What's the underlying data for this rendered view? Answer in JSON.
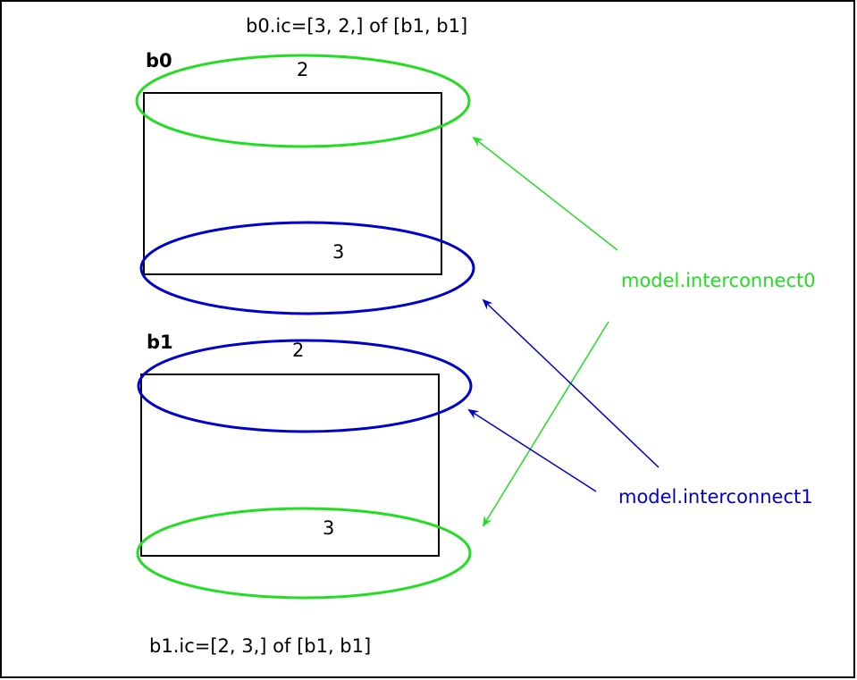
{
  "captions": {
    "top": "b0.ic=[3, 2,] of [b1, b1]",
    "bottom": "b1.ic=[2, 3,] of [b1, b1]"
  },
  "blocks": {
    "b0": {
      "label": "b0",
      "top_face": "2",
      "bottom_face": "3"
    },
    "b1": {
      "label": "b1",
      "top_face": "2",
      "bottom_face": "3"
    }
  },
  "interconnects": {
    "ic0": {
      "label": "model.interconnect0",
      "color": "#22dd22"
    },
    "ic1": {
      "label": "model.interconnect1",
      "color": "#0000cc"
    }
  }
}
